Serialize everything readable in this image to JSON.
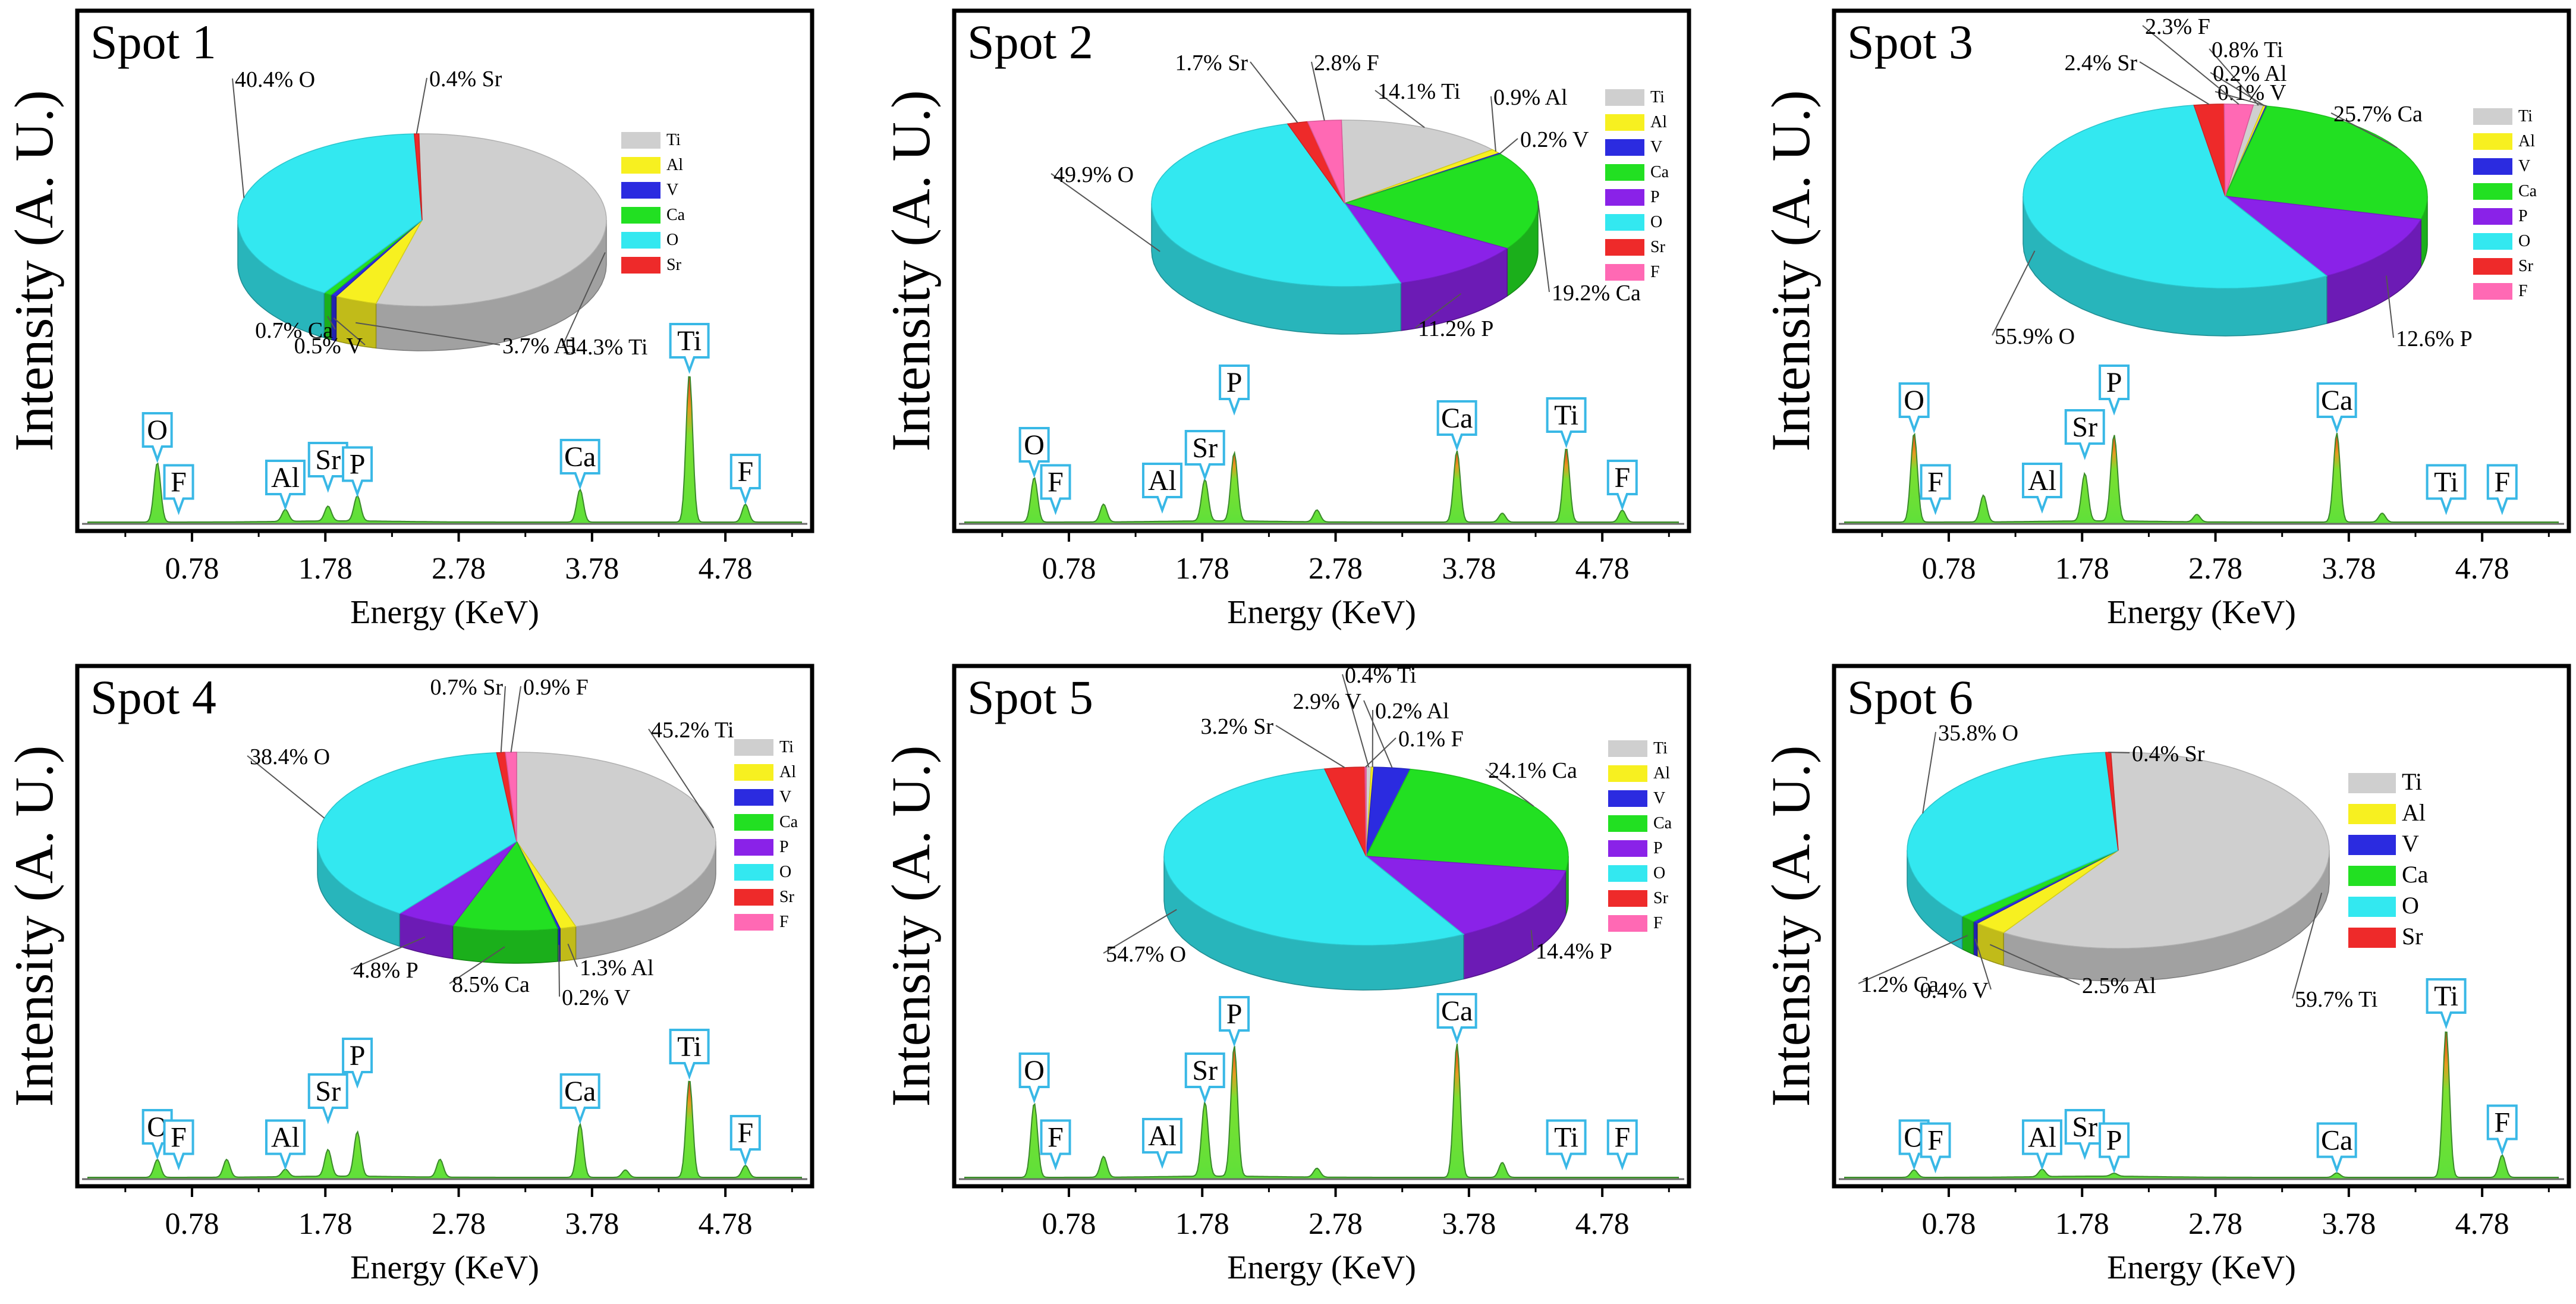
{
  "figure": {
    "ylabel": "Intensity (A. U.)",
    "xlabel": "Energy  (KeV)"
  },
  "colors": {
    "Ti": "#cfcfcf",
    "Al": "#f7f020",
    "V": "#2b2be0",
    "Ca": "#22e022",
    "P": "#8a22e8",
    "O": "#33e8f0",
    "Sr": "#ee2a2a",
    "F": "#ff69b4",
    "peak_green": "#5fe03a",
    "peak_red": "#e0401a",
    "callout": "#39b8e6"
  },
  "chart_data": [
    {
      "type": "line",
      "title": "Spot 1",
      "xlabel": "Energy  (KeV)",
      "ylabel": "Intensity (A. U.)",
      "xlim": [
        0,
        5.35
      ],
      "xticks": [
        0.78,
        1.78,
        2.78,
        3.78,
        4.78
      ],
      "xtick_labels": [
        "0.78",
        "1.78",
        "2.78",
        "3.78",
        "4.78"
      ],
      "spectrum_peaks": [
        {
          "x": 0.52,
          "h": 0.4
        },
        {
          "x": 1.48,
          "h": 0.08
        },
        {
          "x": 1.8,
          "h": 0.1
        },
        {
          "x": 2.02,
          "h": 0.17
        },
        {
          "x": 3.69,
          "h": 0.22
        },
        {
          "x": 4.51,
          "h": 1.0
        },
        {
          "x": 4.93,
          "h": 0.12
        }
      ],
      "peak_labels": [
        {
          "label": "O",
          "x": 0.52,
          "h": 0.4
        },
        {
          "label": "F",
          "x": 0.68,
          "h": 0.05
        },
        {
          "label": "Al",
          "x": 1.48,
          "h": 0.08
        },
        {
          "label": "Sr",
          "x": 1.8,
          "h": 0.2
        },
        {
          "label": "P",
          "x": 2.02,
          "h": 0.17
        },
        {
          "label": "Ca",
          "x": 3.69,
          "h": 0.22
        },
        {
          "label": "Ti",
          "x": 4.51,
          "h": 1.0
        },
        {
          "label": "F",
          "x": 4.93,
          "h": 0.12
        }
      ],
      "pie": {
        "legend": [
          "Ti",
          "Al",
          "V",
          "Ca",
          "O",
          "Sr"
        ],
        "legend_size": "small",
        "slices": [
          {
            "element": "Ti",
            "value": 54.3,
            "label": "54.3% Ti"
          },
          {
            "element": "Al",
            "value": 3.7,
            "label": "3.7% Al"
          },
          {
            "element": "V",
            "value": 0.5,
            "label": "0.5% V"
          },
          {
            "element": "Ca",
            "value": 0.7,
            "label": "0.7% Ca"
          },
          {
            "element": "O",
            "value": 40.4,
            "label": "40.4% O"
          },
          {
            "element": "Sr",
            "value": 0.4,
            "label": "0.4% Sr"
          }
        ]
      }
    },
    {
      "type": "line",
      "title": "Spot 2",
      "xlabel": "Energy  (KeV)",
      "ylabel": "Intensity (A. U.)",
      "xlim": [
        0,
        5.35
      ],
      "xticks": [
        0.78,
        1.78,
        2.78,
        3.78,
        4.78
      ],
      "xtick_labels": [
        "0.78",
        "1.78",
        "2.78",
        "3.78",
        "4.78"
      ],
      "spectrum_peaks": [
        {
          "x": 0.52,
          "h": 0.3
        },
        {
          "x": 1.04,
          "h": 0.12
        },
        {
          "x": 1.8,
          "h": 0.28
        },
        {
          "x": 2.02,
          "h": 0.46
        },
        {
          "x": 2.64,
          "h": 0.08
        },
        {
          "x": 3.69,
          "h": 0.48
        },
        {
          "x": 4.03,
          "h": 0.06
        },
        {
          "x": 4.51,
          "h": 0.5
        },
        {
          "x": 4.93,
          "h": 0.08
        }
      ],
      "peak_labels": [
        {
          "label": "O",
          "x": 0.52,
          "h": 0.3
        },
        {
          "label": "F",
          "x": 0.68,
          "h": 0.05
        },
        {
          "label": "Al",
          "x": 1.48,
          "h": 0.06
        },
        {
          "label": "Sr",
          "x": 1.8,
          "h": 0.28
        },
        {
          "label": "P",
          "x": 2.02,
          "h": 0.72
        },
        {
          "label": "Ca",
          "x": 3.69,
          "h": 0.48
        },
        {
          "label": "Ti",
          "x": 4.51,
          "h": 0.5
        },
        {
          "label": "F",
          "x": 4.93,
          "h": 0.08
        }
      ],
      "pie": {
        "legend": [
          "Ti",
          "Al",
          "V",
          "Ca",
          "P",
          "O",
          "Sr",
          "F"
        ],
        "legend_size": "small",
        "slices": [
          {
            "element": "Ti",
            "value": 14.1,
            "label": "14.1% Ti"
          },
          {
            "element": "Al",
            "value": 0.9,
            "label": "0.9% Al"
          },
          {
            "element": "V",
            "value": 0.2,
            "label": "0.2% V"
          },
          {
            "element": "Ca",
            "value": 19.2,
            "label": "19.2% Ca"
          },
          {
            "element": "P",
            "value": 11.2,
            "label": "11.2% P"
          },
          {
            "element": "O",
            "value": 49.9,
            "label": "49.9% O"
          },
          {
            "element": "Sr",
            "value": 1.7,
            "label": "1.7% Sr"
          },
          {
            "element": "F",
            "value": 2.8,
            "label": "2.8% F"
          }
        ]
      }
    },
    {
      "type": "line",
      "title": "Spot 3",
      "xlabel": "Energy  (KeV)",
      "ylabel": "Intensity (A. U.)",
      "xlim": [
        0,
        5.35
      ],
      "xticks": [
        0.78,
        1.78,
        2.78,
        3.78,
        4.78
      ],
      "xtick_labels": [
        "0.78",
        "1.78",
        "2.78",
        "3.78",
        "4.78"
      ],
      "spectrum_peaks": [
        {
          "x": 0.52,
          "h": 0.6
        },
        {
          "x": 1.04,
          "h": 0.18
        },
        {
          "x": 1.8,
          "h": 0.32
        },
        {
          "x": 2.02,
          "h": 0.58
        },
        {
          "x": 2.64,
          "h": 0.05
        },
        {
          "x": 3.69,
          "h": 0.6
        },
        {
          "x": 4.03,
          "h": 0.06
        }
      ],
      "peak_labels": [
        {
          "label": "O",
          "x": 0.52,
          "h": 0.6
        },
        {
          "label": "F",
          "x": 0.68,
          "h": 0.05
        },
        {
          "label": "Al",
          "x": 1.48,
          "h": 0.06
        },
        {
          "label": "Sr",
          "x": 1.8,
          "h": 0.42
        },
        {
          "label": "P",
          "x": 2.02,
          "h": 0.72
        },
        {
          "label": "Ca",
          "x": 3.69,
          "h": 0.6
        },
        {
          "label": "Ti",
          "x": 4.51,
          "h": 0.05
        },
        {
          "label": "F",
          "x": 4.93,
          "h": 0.05
        }
      ],
      "pie": {
        "legend": [
          "Ti",
          "Al",
          "V",
          "Ca",
          "P",
          "O",
          "Sr",
          "F"
        ],
        "legend_size": "small",
        "slices": [
          {
            "element": "Ti",
            "value": 0.8,
            "label": "0.8% Ti"
          },
          {
            "element": "Al",
            "value": 0.2,
            "label": "0.2% Al"
          },
          {
            "element": "V",
            "value": 0.1,
            "label": "0.1% V"
          },
          {
            "element": "Ca",
            "value": 25.7,
            "label": "25.7% Ca"
          },
          {
            "element": "P",
            "value": 12.6,
            "label": "12.6% P"
          },
          {
            "element": "O",
            "value": 55.9,
            "label": "55.9% O"
          },
          {
            "element": "Sr",
            "value": 2.4,
            "label": "2.4% Sr"
          },
          {
            "element": "F",
            "value": 2.3,
            "label": "2.3% F"
          }
        ]
      }
    },
    {
      "type": "line",
      "title": "Spot 4",
      "xlabel": "Energy  (KeV)",
      "ylabel": "Intensity (A. U.)",
      "xlim": [
        0,
        5.35
      ],
      "xticks": [
        0.78,
        1.78,
        2.78,
        3.78,
        4.78
      ],
      "xtick_labels": [
        "0.78",
        "1.78",
        "2.78",
        "3.78",
        "4.78"
      ],
      "spectrum_peaks": [
        {
          "x": 0.52,
          "h": 0.12
        },
        {
          "x": 1.04,
          "h": 0.12
        },
        {
          "x": 1.48,
          "h": 0.05
        },
        {
          "x": 1.8,
          "h": 0.18
        },
        {
          "x": 2.02,
          "h": 0.3
        },
        {
          "x": 2.64,
          "h": 0.12
        },
        {
          "x": 3.69,
          "h": 0.36
        },
        {
          "x": 4.03,
          "h": 0.05
        },
        {
          "x": 4.51,
          "h": 0.66
        },
        {
          "x": 4.93,
          "h": 0.08
        }
      ],
      "peak_labels": [
        {
          "label": "O",
          "x": 0.52,
          "h": 0.12
        },
        {
          "label": "F",
          "x": 0.68,
          "h": 0.05
        },
        {
          "label": "Al",
          "x": 1.48,
          "h": 0.05
        },
        {
          "label": "Sr",
          "x": 1.8,
          "h": 0.36
        },
        {
          "label": "P",
          "x": 2.02,
          "h": 0.6
        },
        {
          "label": "Ca",
          "x": 3.69,
          "h": 0.36
        },
        {
          "label": "Ti",
          "x": 4.51,
          "h": 0.66
        },
        {
          "label": "F",
          "x": 4.93,
          "h": 0.08
        }
      ],
      "pie": {
        "legend": [
          "Ti",
          "Al",
          "V",
          "Ca",
          "P",
          "O",
          "Sr",
          "F"
        ],
        "legend_size": "small",
        "slices": [
          {
            "element": "Ti",
            "value": 45.2,
            "label": "45.2% Ti"
          },
          {
            "element": "Al",
            "value": 1.3,
            "label": "1.3% Al"
          },
          {
            "element": "V",
            "value": 0.2,
            "label": "0.2% V"
          },
          {
            "element": "Ca",
            "value": 8.5,
            "label": "8.5% Ca"
          },
          {
            "element": "P",
            "value": 4.8,
            "label": "4.8% P"
          },
          {
            "element": "O",
            "value": 38.4,
            "label": "38.4% O"
          },
          {
            "element": "Sr",
            "value": 0.7,
            "label": "0.7% Sr"
          },
          {
            "element": "F",
            "value": 0.9,
            "label": "0.9% F"
          }
        ]
      }
    },
    {
      "type": "line",
      "title": "Spot 5",
      "xlabel": "Energy  (KeV)",
      "ylabel": "Intensity (A. U.)",
      "xlim": [
        0,
        5.35
      ],
      "xticks": [
        0.78,
        1.78,
        2.78,
        3.78,
        4.78
      ],
      "xtick_labels": [
        "0.78",
        "1.78",
        "2.78",
        "3.78",
        "4.78"
      ],
      "spectrum_peaks": [
        {
          "x": 0.52,
          "h": 0.5
        },
        {
          "x": 1.04,
          "h": 0.14
        },
        {
          "x": 1.8,
          "h": 0.5
        },
        {
          "x": 2.02,
          "h": 0.88
        },
        {
          "x": 2.64,
          "h": 0.06
        },
        {
          "x": 3.69,
          "h": 0.9
        },
        {
          "x": 4.03,
          "h": 0.1
        }
      ],
      "peak_labels": [
        {
          "label": "O",
          "x": 0.52,
          "h": 0.5
        },
        {
          "label": "F",
          "x": 0.68,
          "h": 0.05
        },
        {
          "label": "Al",
          "x": 1.48,
          "h": 0.06
        },
        {
          "label": "Sr",
          "x": 1.8,
          "h": 0.5
        },
        {
          "label": "P",
          "x": 2.02,
          "h": 0.88
        },
        {
          "label": "Ca",
          "x": 3.69,
          "h": 0.9
        },
        {
          "label": "Ti",
          "x": 4.51,
          "h": 0.05
        },
        {
          "label": "F",
          "x": 4.93,
          "h": 0.05
        }
      ],
      "pie": {
        "legend": [
          "Ti",
          "Al",
          "V",
          "Ca",
          "P",
          "O",
          "Sr",
          "F"
        ],
        "legend_size": "small",
        "slices": [
          {
            "element": "Ti",
            "value": 0.4,
            "label": "0.4% Ti"
          },
          {
            "element": "Al",
            "value": 0.2,
            "label": "0.2% Al"
          },
          {
            "element": "V",
            "value": 2.9,
            "label": "2.9% V"
          },
          {
            "element": "Ca",
            "value": 24.1,
            "label": "24.1% Ca"
          },
          {
            "element": "P",
            "value": 14.4,
            "label": "14.4% P"
          },
          {
            "element": "O",
            "value": 54.7,
            "label": "54.7% O"
          },
          {
            "element": "Sr",
            "value": 3.2,
            "label": "3.2% Sr"
          },
          {
            "element": "F",
            "value": 0.1,
            "label": "0.1% F"
          }
        ]
      }
    },
    {
      "type": "line",
      "title": "Spot 6",
      "xlabel": "Energy  (KeV)",
      "ylabel": "Intensity (A. U.)",
      "xlim": [
        0,
        5.35
      ],
      "xticks": [
        0.78,
        1.78,
        2.78,
        3.78,
        4.78
      ],
      "xtick_labels": [
        "0.78",
        "1.78",
        "2.78",
        "3.78",
        "4.78"
      ],
      "spectrum_peaks": [
        {
          "x": 0.52,
          "h": 0.05
        },
        {
          "x": 1.48,
          "h": 0.05
        },
        {
          "x": 2.02,
          "h": 0.02
        },
        {
          "x": 3.69,
          "h": 0.03
        },
        {
          "x": 4.51,
          "h": 1.0
        },
        {
          "x": 4.93,
          "h": 0.15
        }
      ],
      "peak_labels": [
        {
          "label": "O",
          "x": 0.52,
          "h": 0.05
        },
        {
          "label": "F",
          "x": 0.68,
          "h": 0.03
        },
        {
          "label": "Al",
          "x": 1.48,
          "h": 0.05
        },
        {
          "label": "Sr",
          "x": 1.8,
          "h": 0.12
        },
        {
          "label": "P",
          "x": 2.02,
          "h": 0.03
        },
        {
          "label": "Ca",
          "x": 3.69,
          "h": 0.03
        },
        {
          "label": "Ti",
          "x": 4.51,
          "h": 1.0
        },
        {
          "label": "F",
          "x": 4.93,
          "h": 0.15
        }
      ],
      "pie": {
        "legend": [
          "Ti",
          "Al",
          "V",
          "Ca",
          "O",
          "Sr"
        ],
        "legend_size": "large",
        "slices": [
          {
            "element": "Ti",
            "value": 59.7,
            "label": "59.7% Ti"
          },
          {
            "element": "Al",
            "value": 2.5,
            "label": "2.5% Al"
          },
          {
            "element": "V",
            "value": 0.4,
            "label": "0.4% V"
          },
          {
            "element": "Ca",
            "value": 1.2,
            "label": "1.2% Ca"
          },
          {
            "element": "O",
            "value": 35.8,
            "label": "35.8% O"
          },
          {
            "element": "Sr",
            "value": 0.4,
            "label": "0.4% Sr"
          }
        ]
      }
    }
  ]
}
